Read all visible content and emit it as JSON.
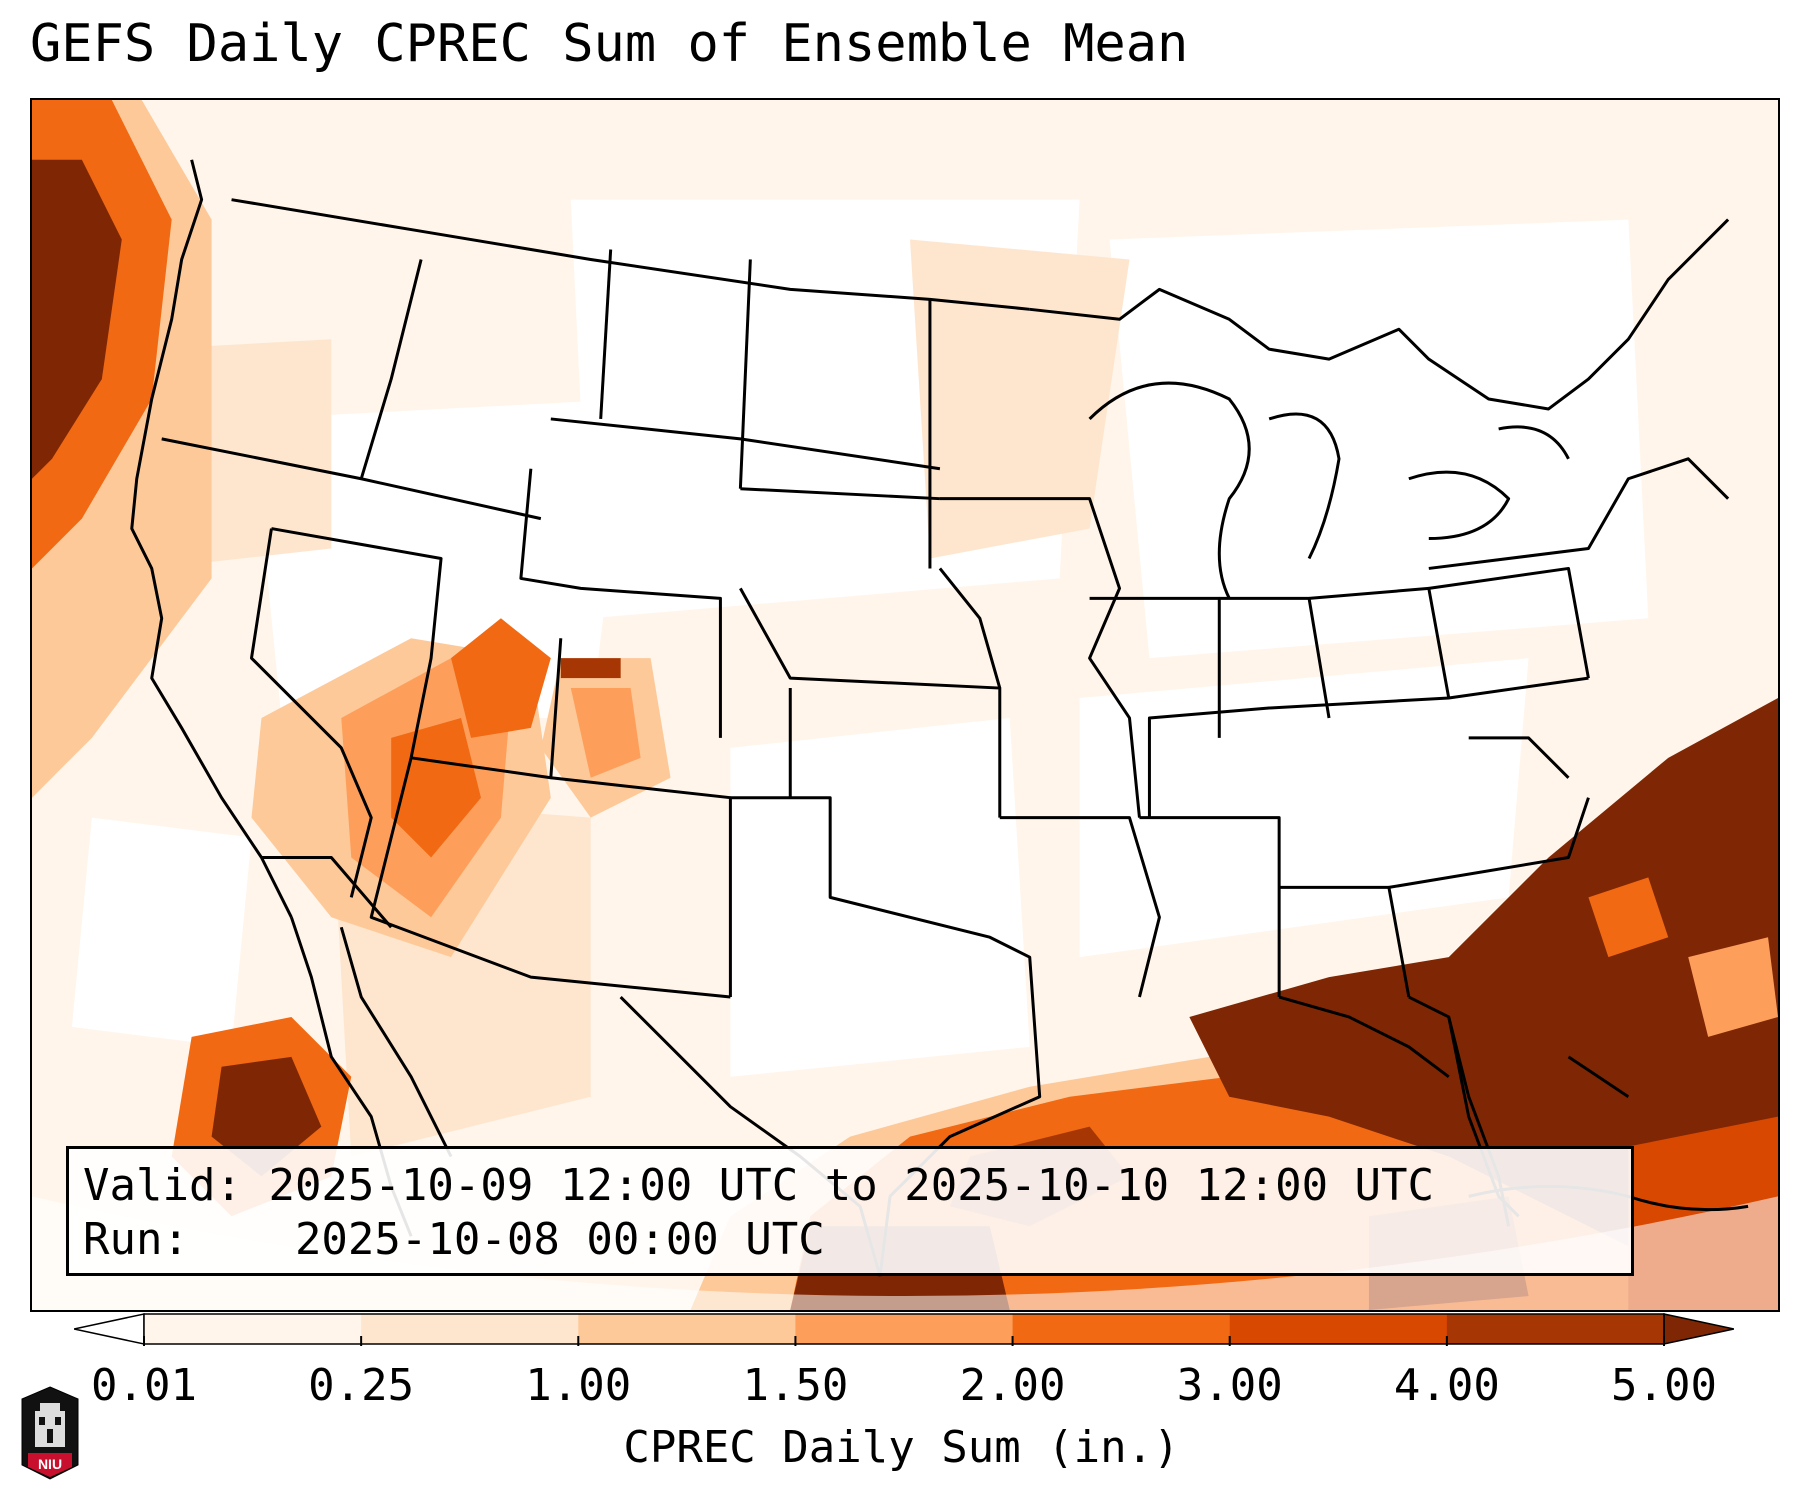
{
  "title": "GEFS Daily CPREC Sum of Ensemble Mean",
  "info": {
    "valid_label": "Valid:",
    "valid_value": "2025-10-09 12:00 UTC to 2025-10-10 12:00 UTC",
    "run_label": "Run:",
    "run_value": "2025-10-08 00:00 UTC"
  },
  "colorbar": {
    "label": "CPREC Daily Sum (in.)",
    "ticks": [
      "0.01",
      "0.25",
      "1.00",
      "1.50",
      "2.00",
      "3.00",
      "4.00",
      "5.00"
    ],
    "colors": [
      "#fff5eb",
      "#fee6ce",
      "#fdc999",
      "#fd9f5b",
      "#f16913",
      "#d94801",
      "#a63603",
      "#7f2704"
    ],
    "under_color": "#ffffff",
    "over_color": "#7f2704"
  },
  "map": {
    "projection": "Lambert conformal, CONUS",
    "field": "ensemble-mean convective precipitation",
    "boundary_color": "#000000",
    "max_regions": [
      "Gulf of Mexico",
      "Atlantic east of Florida",
      "Arizona / New Mexico",
      "Pacific Northwest coast"
    ]
  },
  "logo": {
    "text": "NIU"
  }
}
